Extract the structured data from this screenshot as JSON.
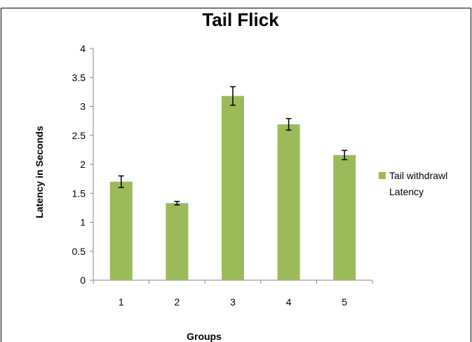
{
  "chart_data": {
    "type": "bar",
    "title": "Tail Flick",
    "xlabel": "Groups",
    "ylabel": "Latency  in  Seconds",
    "categories": [
      "1",
      "2",
      "3",
      "4",
      "5"
    ],
    "series": [
      {
        "name": "Tail withdrawl Latency",
        "legend_lines": [
          "Tail withdrawl",
          "Latency"
        ],
        "values": [
          1.7,
          1.33,
          3.18,
          2.69,
          2.16
        ],
        "errors": [
          0.1,
          0.03,
          0.16,
          0.1,
          0.08
        ],
        "color": "#9bbb59"
      }
    ],
    "ylim": [
      0,
      4
    ],
    "yticks": [
      "0",
      "0.5",
      "1",
      "1.5",
      "2",
      "2.5",
      "3",
      "3.5",
      "4"
    ],
    "ytick_values": [
      0,
      0.5,
      1,
      1.5,
      2,
      2.5,
      3,
      3.5,
      4
    ],
    "grid": false,
    "legend_position": "right"
  }
}
